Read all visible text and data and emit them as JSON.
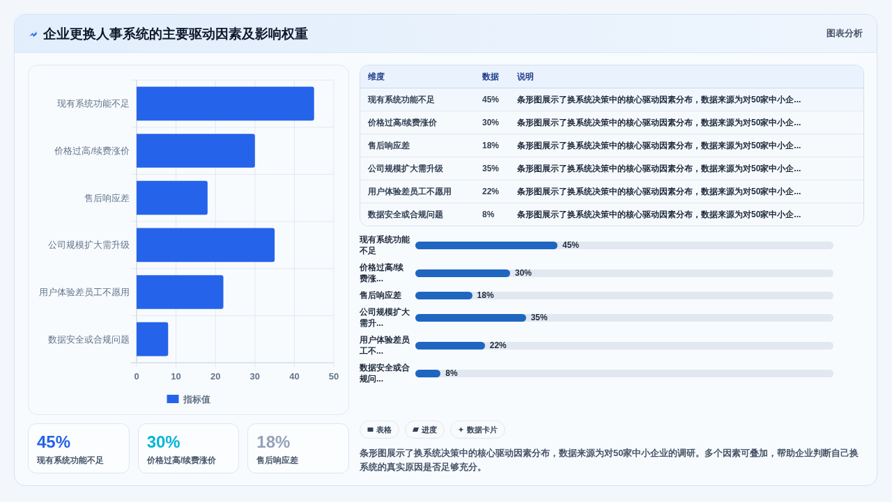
{
  "chart_data": [
    {
      "type": "other",
      "title": "企业更换人事系统的主要驱动因素及影响权重",
      "subtitle": "图表分析"
    },
    {
      "type": "bar",
      "orientation": "horizontal",
      "categories": [
        "现有系统功能不足",
        "价格过高/续费涨价",
        "售后响应差",
        "公司规模扩大需升级",
        "用户体验差员工不愿用",
        "数据安全或合规问题"
      ],
      "series": [
        {
          "name": "指标值",
          "color": "#2563eb",
          "values": [
            45,
            30,
            18,
            35,
            22,
            8
          ]
        }
      ],
      "xlim": [
        0,
        50
      ],
      "xticks": [
        0,
        10,
        20,
        30,
        40,
        50
      ],
      "grid": true,
      "legend": "bottom"
    },
    {
      "type": "other",
      "categories": [
        "现有系统功能不足",
        "价格过高/续费涨价",
        "售后响应差",
        "公司规模扩大需升级",
        "用户体验差员工不愿用",
        "数据安全或合规问题"
      ],
      "value_labels": [
        "45%",
        "30%",
        "18%",
        "35%",
        "22%",
        "8%"
      ],
      "annotations": [
        "维度",
        "数据",
        "说明",
        "条形图展示了换系统决策中的核心驱动因素分布，数据来源为对50家中小企...",
        "条形图展示了换系统决策中的核心驱动因素分布，数据来源为对50家中小企...",
        "条形图展示了换系统决策中的核心驱动因素分布，数据来源为对50家中小企...",
        "条形图展示了换系统决策中的核心驱动因素分布，数据来源为对50家中小企...",
        "条形图展示了换系统决策中的核心驱动因素分布，数据来源为对50家中小企...",
        "条形图展示了换系统决策中的核心驱动因素分布，数据来源为对50家中小企..."
      ]
    },
    {
      "type": "bar",
      "orientation": "horizontal",
      "categories": [
        "现有系统功能不足",
        "价格过高/续费涨...",
        "售后响应差",
        "公司规模扩大需升...",
        "用户体验差员工不...",
        "数据安全或合规问..."
      ],
      "series": [
        {
          "color": "#1f66c1",
          "values": [
            45,
            30,
            18,
            35,
            22,
            8
          ],
          "value_labels": [
            "45%",
            "30%",
            "18%",
            "35%",
            "22%",
            "8%"
          ]
        }
      ],
      "tick_labels": "y"
    },
    {
      "type": "other",
      "categories": [
        "现有系统功能不足",
        "价格过高/续费涨价",
        "售后响应差"
      ],
      "value_labels": [
        "45%",
        "30%",
        "18%"
      ]
    },
    {
      "type": "other",
      "annotations": [
        "表格",
        "进度",
        "数据卡片",
        "条形图展示了换系统决策中的核心驱动因素分布，数据来源为对50家中小企业的调研。多个因素可叠加，帮助企业判断自己换系统的真实原因是否足够充分。"
      ]
    }
  ]
}
